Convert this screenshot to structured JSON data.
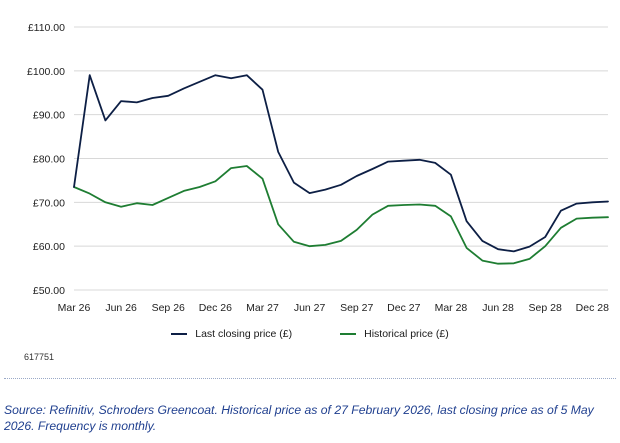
{
  "chart_data": {
    "type": "line",
    "x": [
      "Mar 26",
      "Apr 26",
      "May 26",
      "Jun 26",
      "Jul 26",
      "Aug 26",
      "Sep 26",
      "Oct 26",
      "Nov 26",
      "Dec 26",
      "Jan 27",
      "Feb 27",
      "Mar 27",
      "Apr 27",
      "May 27",
      "Jun 27",
      "Jul 27",
      "Aug 27",
      "Sep 27",
      "Oct 27",
      "Nov 27",
      "Dec 27",
      "Jan 28",
      "Feb 28",
      "Mar 28",
      "Apr 28",
      "May 28",
      "Jun 28",
      "Jul 28",
      "Aug 28",
      "Sep 28",
      "Oct 28",
      "Nov 28",
      "Dec 28",
      "Jan 29"
    ],
    "x_tick_labels": [
      "Mar 26",
      "Jun 26",
      "Sep 26",
      "Dec 26",
      "Mar 27",
      "Jun 27",
      "Sep 27",
      "Dec 27",
      "Mar 28",
      "Jun 28",
      "Sep 28",
      "Dec 28"
    ],
    "y_tick_labels": [
      "£50.00",
      "£60.00",
      "£70.00",
      "£80.00",
      "£90.00",
      "£100.00",
      "£110.00"
    ],
    "y_ticks": [
      50,
      60,
      70,
      80,
      90,
      100,
      110
    ],
    "ylim": [
      50,
      110
    ],
    "grid": "horizontal",
    "legend_position": "bottom",
    "series": [
      {
        "name": "Last closing price (£)",
        "color": "#0d1f45",
        "values": [
          73.5,
          99.0,
          88.7,
          93.1,
          92.8,
          93.8,
          94.3,
          96.0,
          97.5,
          99.0,
          98.3,
          99.0,
          95.7,
          81.5,
          74.5,
          72.1,
          72.9,
          74.0,
          76.0,
          77.6,
          79.3,
          79.5,
          79.7,
          79.0,
          76.3,
          65.7,
          61.2,
          59.3,
          58.8,
          59.9,
          62.1,
          68.1,
          69.7,
          70.0,
          70.2
        ]
      },
      {
        "name": "Historical price (£)",
        "color": "#1e7d32",
        "values": [
          73.5,
          72.0,
          70.0,
          69.0,
          69.8,
          69.4,
          71.0,
          72.6,
          73.5,
          74.8,
          77.8,
          78.3,
          75.4,
          65.0,
          61.0,
          60.0,
          60.3,
          61.2,
          63.7,
          67.2,
          69.2,
          69.4,
          69.5,
          69.2,
          66.8,
          59.6,
          56.7,
          56.0,
          56.1,
          57.1,
          60.0,
          64.2,
          66.3,
          66.5,
          66.6
        ]
      }
    ]
  },
  "chart_id": "617751",
  "source_note": "Source: Refinitiv, Schroders Greencoat. Historical price as of 27 February 2026, last closing price as of 5 May 2026. Frequency is monthly.",
  "colors": {
    "grid": "#d8d8d8",
    "source_text": "#1f3f8f"
  }
}
